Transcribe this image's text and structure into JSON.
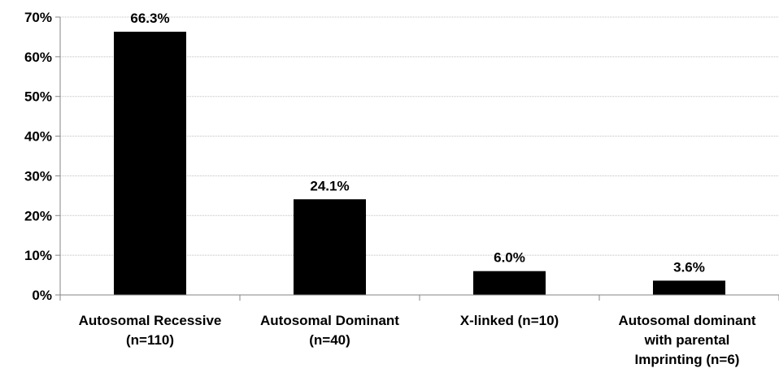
{
  "chart_data": {
    "type": "bar",
    "categories": [
      [
        "Autosomal Recessive",
        "(n=110)"
      ],
      [
        "Autosomal Dominant",
        "(n=40)"
      ],
      [
        "X-linked (n=10)"
      ],
      [
        "Autosomal dominant",
        "with parental",
        "Imprinting (n=6)"
      ]
    ],
    "values": [
      66.3,
      24.1,
      6.0,
      3.6
    ],
    "data_labels": [
      "66.3%",
      "24.1%",
      "6.0%",
      "3.6%"
    ],
    "ylim": [
      0,
      70
    ],
    "yticks": [
      0,
      10,
      20,
      30,
      40,
      50,
      60,
      70
    ],
    "ytick_labels": [
      "0%",
      "10%",
      "20%",
      "30%",
      "40%",
      "50%",
      "60%",
      "70%"
    ],
    "grid": true,
    "bar_color": "#000000",
    "grid_color": "#bfbfbf",
    "axis_color": "#868686"
  }
}
